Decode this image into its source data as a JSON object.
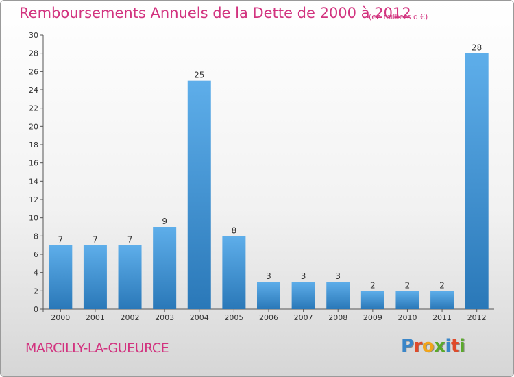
{
  "header": {
    "title": "Remboursements Annuels de la Dette de 2000 à 2012",
    "subtitle": "(en milliers d'€)"
  },
  "footer": {
    "commune": "MARCILLY-LA-GUEURCE",
    "logo_text": "Proxiti",
    "logo_letters": [
      {
        "char": "P",
        "color": "#3a86c8"
      },
      {
        "char": "r",
        "color": "#e04a2a"
      },
      {
        "char": "o",
        "color": "#f2a51a"
      },
      {
        "char": "x",
        "color": "#5aaa2a"
      },
      {
        "char": "i",
        "color": "#3a86c8"
      },
      {
        "char": "t",
        "color": "#e04a2a"
      },
      {
        "char": "i",
        "color": "#5aaa2a"
      }
    ]
  },
  "colors": {
    "accent": "#d2337f",
    "bar_top": "#5eaeea",
    "bar_bottom": "#2a78b8"
  },
  "chart_data": {
    "type": "bar",
    "title": "Remboursements Annuels de la Dette de 2000 à 2012",
    "subtitle": "(en milliers d'€)",
    "xlabel": "",
    "ylabel": "",
    "categories": [
      "2000",
      "2001",
      "2002",
      "2003",
      "2004",
      "2005",
      "2006",
      "2007",
      "2008",
      "2009",
      "2010",
      "2011",
      "2012"
    ],
    "values": [
      7,
      7,
      7,
      9,
      25,
      8,
      3,
      3,
      3,
      2,
      2,
      2,
      28
    ],
    "ylim": [
      0,
      30
    ],
    "y_ticks": [
      0,
      2,
      4,
      6,
      8,
      10,
      12,
      14,
      16,
      18,
      20,
      22,
      24,
      26,
      28,
      30
    ],
    "data_labels": true,
    "grid": false
  }
}
